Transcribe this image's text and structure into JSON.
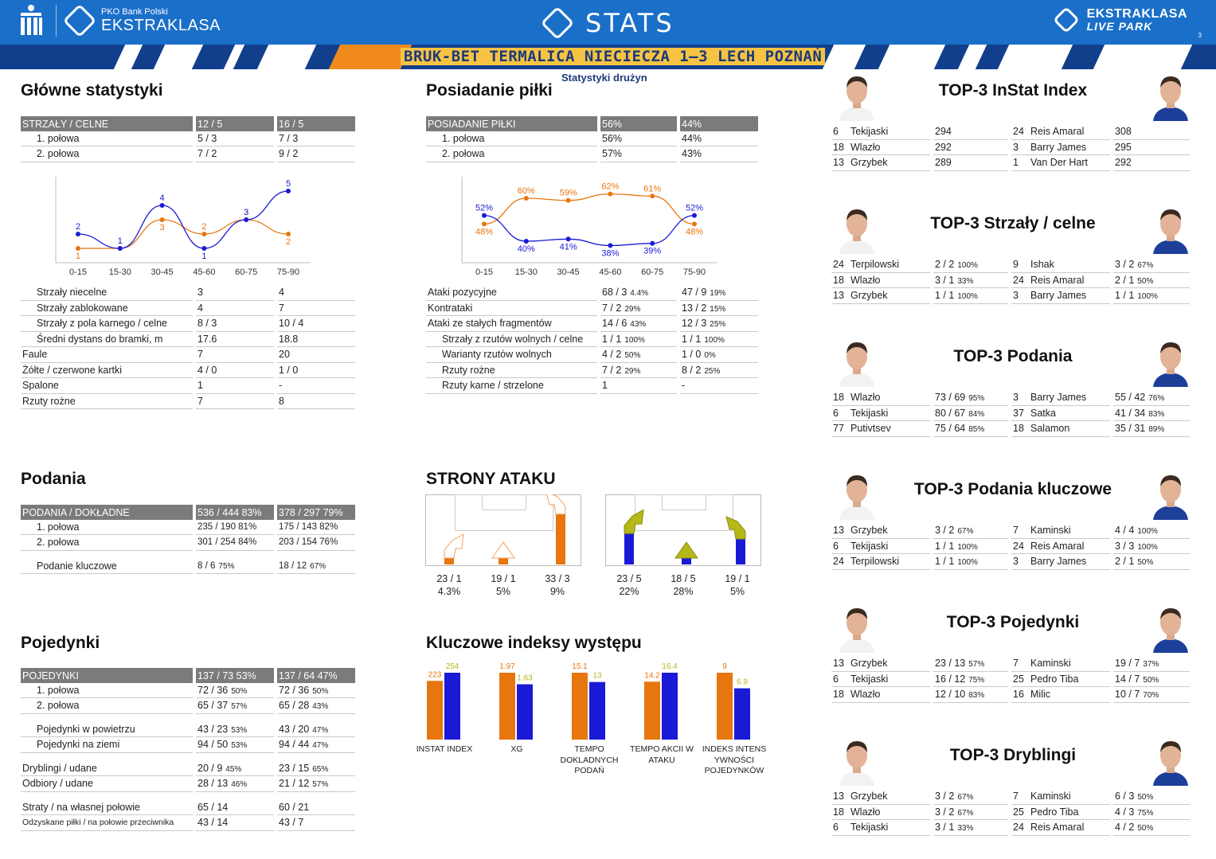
{
  "header": {
    "bank": "PKO Bank Polski",
    "league": "EKSTRAKLASA",
    "stats": "STATS",
    "right_top": "EKSTRAKLASA",
    "right_bottom": "LIVE PARK",
    "page": "3"
  },
  "match": {
    "title": "BRUK-BET TERMALICA NIECIECZA 1–3 LECH POZNAŃ",
    "subtitle": "Statystyki drużyn"
  },
  "colors": {
    "home": "#e8760e",
    "away": "#1a1ad6",
    "header_blue": "#1a6fc9"
  },
  "main_stats": {
    "title": "Główne statystyki",
    "header": [
      "STRZAŁY / CELNE",
      "12 / 5",
      "16 / 5"
    ],
    "halves": [
      [
        "1. połowa",
        "5 / 3",
        "7 / 3"
      ],
      [
        "2. połowa",
        "7 / 2",
        "9 / 2"
      ]
    ],
    "rows": [
      [
        "Strzały niecelne",
        "3",
        "4",
        true
      ],
      [
        "Strzały zablokowane",
        "4",
        "7",
        true
      ],
      [
        "Strzały z pola karnego / celne",
        "8 / 3",
        "10 / 4",
        true
      ],
      [
        "Średni dystans do bramki, m",
        "17.6",
        "18.8",
        true
      ],
      [
        "Faule",
        "7",
        "20",
        false
      ],
      [
        "Żółte / czerwone kartki",
        "4 / 0",
        "1 / 0",
        false
      ],
      [
        "Spalone",
        "1",
        "-",
        false
      ],
      [
        "Rzuty rożne",
        "7",
        "8",
        false
      ]
    ]
  },
  "shots_chart": {
    "type": "line",
    "categories": [
      "0-15",
      "15-30",
      "30-45",
      "45-60",
      "60-75",
      "75-90"
    ],
    "series": [
      {
        "values": [
          1,
          1,
          3,
          2,
          3,
          2
        ]
      },
      {
        "values": [
          2,
          1,
          4,
          1,
          3,
          5
        ]
      }
    ],
    "ylim": [
      0,
      6
    ]
  },
  "possession": {
    "title": "Posiadanie piłki",
    "header": [
      "POSIADANIE PIŁKI",
      "56%",
      "44%"
    ],
    "halves": [
      [
        "1. połowa",
        "56%",
        "44%"
      ],
      [
        "2. połowa",
        "57%",
        "43%"
      ]
    ],
    "rows": [
      [
        "Ataki pozycyjne",
        "68 / 3",
        "4.4%",
        "47 / 9",
        "19%",
        false
      ],
      [
        "Kontrataki",
        "7 / 2",
        "29%",
        "13 / 2",
        "15%",
        false
      ],
      [
        "Ataki ze stałych fragmentów",
        "14 / 6",
        "43%",
        "12 / 3",
        "25%",
        false
      ],
      [
        "Strzały z rzutów wolnych / celne",
        "1 / 1",
        "100%",
        "1 / 1",
        "100%",
        true
      ],
      [
        "Warianty rzutów wolnych",
        "4 / 2",
        "50%",
        "1 / 0",
        "0%",
        true
      ],
      [
        "Rzuty rożne",
        "7 / 2",
        "29%",
        "8 / 2",
        "25%",
        true
      ],
      [
        "Rzuty karne / strzelone",
        "1",
        "",
        "-",
        "",
        true
      ]
    ]
  },
  "possession_chart": {
    "type": "line",
    "categories": [
      "0-15",
      "15-30",
      "30-45",
      "45-60",
      "60-75",
      "75-90"
    ],
    "series": [
      {
        "values": [
          48,
          60,
          59,
          62,
          61,
          48
        ]
      },
      {
        "values": [
          52,
          40,
          41,
          38,
          39,
          52
        ]
      }
    ],
    "ylim": [
      30,
      70
    ]
  },
  "passes": {
    "title": "Podania",
    "header": [
      "PODANIA / DOKŁADNE",
      "536 / 444 83%",
      "378 / 297 79%"
    ],
    "rows": [
      [
        "1. połowa",
        "235 / 190 81%",
        "175 / 143 82%",
        false
      ],
      [
        "2. połowa",
        "301 / 254 84%",
        "203 / 154 76%",
        false
      ],
      [
        "Podanie kluczowe",
        "8 / 6",
        "75%",
        "18 / 12",
        "67%",
        true
      ]
    ]
  },
  "attack_sides": {
    "title": "STRONY ATAKU",
    "home": [
      {
        "label": "23 / 1",
        "pct": "4.3%",
        "value": 23
      },
      {
        "label": "19 / 1",
        "pct": "5%",
        "value": 19
      },
      {
        "label": "33 / 3",
        "pct": "9%",
        "value": 33
      }
    ],
    "away": [
      {
        "label": "23 / 5",
        "pct": "22%",
        "value": 23
      },
      {
        "label": "18 / 5",
        "pct": "28%",
        "value": 18
      },
      {
        "label": "19 / 1",
        "pct": "5%",
        "value": 19
      }
    ]
  },
  "duels": {
    "title": "Pojedynki",
    "header": [
      "POJEDYNKI",
      "137 / 73 53%",
      "137 / 64 47%"
    ],
    "rows": [
      [
        "1. połowa",
        "72 / 36",
        "50%",
        "72 / 36",
        "50%",
        true,
        false
      ],
      [
        "2. połowa",
        "65 / 37",
        "57%",
        "65 / 28",
        "43%",
        true,
        true
      ],
      [
        "Pojedynki w powietrzu",
        "43 / 23",
        "53%",
        "43 / 20",
        "47%",
        true,
        false
      ],
      [
        "Pojedynki na ziemi",
        "94 / 50",
        "53%",
        "94 / 44",
        "47%",
        true,
        true
      ],
      [
        "Dryblingi / udane",
        "20 / 9",
        "45%",
        "23 / 15",
        "65%",
        false,
        false
      ],
      [
        "Odbiory / udane",
        "28 / 13",
        "46%",
        "21 / 12",
        "57%",
        false,
        true
      ],
      [
        "Straty / na własnej połowie",
        "65 / 14",
        "",
        "60 / 21",
        "",
        false,
        false
      ],
      [
        "Odzyskane piłki / na połowie przeciwnika",
        "43 / 14",
        "",
        "43 / 7",
        "",
        false,
        false
      ]
    ]
  },
  "key_indices": {
    "title": "Kluczowe indeksy występu",
    "chart_data": {
      "type": "bar",
      "categories": [
        "INSTAT INDEX",
        "XG",
        "TEMPO DOKLADNYCH PODAŃ",
        "TEMPO AKCII W ATAKU",
        "INDEKS INTENS YWNOŚCI POJEDYNKÓW"
      ],
      "series": [
        {
          "values": [
            223,
            1.97,
            15.1,
            14.2,
            9
          ],
          "labels": [
            "223",
            "1.97",
            "15.1",
            "14.2",
            "9"
          ]
        },
        {
          "values": [
            254,
            1.63,
            13,
            16.4,
            6.9
          ],
          "labels": [
            "254",
            "1.63",
            "13",
            "16.4",
            "6.9"
          ]
        }
      ],
      "label_lines": [
        [
          "INSTAT INDEX"
        ],
        [
          "XG"
        ],
        [
          "TEMPO",
          "DOKLADNYCH",
          "PODAŃ"
        ],
        [
          "TEMPO AKCII W",
          "ATAKU"
        ],
        [
          "INDEKS INTENS",
          "YWNOŚCI",
          "POJEDYNKÓW"
        ]
      ]
    }
  },
  "top3": [
    {
      "title": "TOP-3 InStat Index",
      "home": [
        [
          "6",
          "Tekijaski",
          "294",
          ""
        ],
        [
          "18",
          "Wlazło",
          "292",
          ""
        ],
        [
          "13",
          "Grzybek",
          "289",
          ""
        ]
      ],
      "away": [
        [
          "24",
          "Reis Amaral",
          "308",
          ""
        ],
        [
          "3",
          "Barry James",
          "295",
          ""
        ],
        [
          "1",
          "Van Der Hart",
          "292",
          ""
        ]
      ]
    },
    {
      "title": "TOP-3 Strzały / celne",
      "home": [
        [
          "24",
          "Terpilowski",
          "2 / 2",
          "100%"
        ],
        [
          "18",
          "Wlazło",
          "3 / 1",
          "33%"
        ],
        [
          "13",
          "Grzybek",
          "1 / 1",
          "100%"
        ]
      ],
      "away": [
        [
          "9",
          "Ishak",
          "3 / 2",
          "67%"
        ],
        [
          "24",
          "Reis Amaral",
          "2 / 1",
          "50%"
        ],
        [
          "3",
          "Barry James",
          "1 / 1",
          "100%"
        ]
      ]
    },
    {
      "title": "TOP-3 Podania",
      "home": [
        [
          "18",
          "Wlazło",
          "73 / 69",
          "95%"
        ],
        [
          "6",
          "Tekijaski",
          "80 / 67",
          "84%"
        ],
        [
          "77",
          "Putivtsev",
          "75 / 64",
          "85%"
        ]
      ],
      "away": [
        [
          "3",
          "Barry James",
          "55 / 42",
          "76%"
        ],
        [
          "37",
          "Satka",
          "41 / 34",
          "83%"
        ],
        [
          "18",
          "Salamon",
          "35 / 31",
          "89%"
        ]
      ]
    },
    {
      "title": "TOP-3 Podania kluczowe",
      "home": [
        [
          "13",
          "Grzybek",
          "3 / 2",
          "67%"
        ],
        [
          "6",
          "Tekijaski",
          "1 / 1",
          "100%"
        ],
        [
          "24",
          "Terpilowski",
          "1 / 1",
          "100%"
        ]
      ],
      "away": [
        [
          "7",
          "Kaminski",
          "4 / 4",
          "100%"
        ],
        [
          "24",
          "Reis Amaral",
          "3 / 3",
          "100%"
        ],
        [
          "3",
          "Barry James",
          "2 / 1",
          "50%"
        ]
      ]
    },
    {
      "title": "TOP-3 Pojedynki",
      "home": [
        [
          "13",
          "Grzybek",
          "23 / 13",
          "57%"
        ],
        [
          "6",
          "Tekijaski",
          "16 / 12",
          "75%"
        ],
        [
          "18",
          "Wlazło",
          "12 / 10",
          "83%"
        ]
      ],
      "away": [
        [
          "7",
          "Kaminski",
          "19 / 7",
          "37%"
        ],
        [
          "25",
          "Pedro Tiba",
          "14 / 7",
          "50%"
        ],
        [
          "16",
          "Milic",
          "10 / 7",
          "70%"
        ]
      ]
    },
    {
      "title": "TOP-3 Dryblingi",
      "home": [
        [
          "13",
          "Grzybek",
          "3 / 2",
          "67%"
        ],
        [
          "18",
          "Wlazło",
          "3 / 2",
          "67%"
        ],
        [
          "6",
          "Tekijaski",
          "3 / 1",
          "33%"
        ]
      ],
      "away": [
        [
          "7",
          "Kaminski",
          "6 / 3",
          "50%"
        ],
        [
          "25",
          "Pedro Tiba",
          "4 / 3",
          "75%"
        ],
        [
          "24",
          "Reis Amaral",
          "4 / 2",
          "50%"
        ]
      ]
    }
  ]
}
